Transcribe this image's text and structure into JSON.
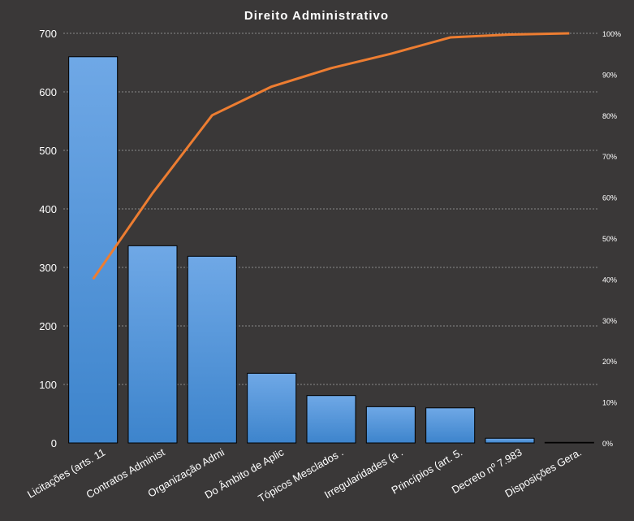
{
  "chart_data": {
    "type": "bar",
    "title": "Direito  Administrativo",
    "categories": [
      "Licitações (arts. 11",
      "Contratos Administ",
      "Organização Admi",
      "Do Âmbito de Aplic",
      "Tópicos Mesclados .",
      "Irregularidades (a .",
      "Princípios (art. 5.",
      "Decreto nº 7.983",
      "Disposições Gera."
    ],
    "series": [
      {
        "type": "bar",
        "values": [
          660,
          337,
          319,
          119,
          81,
          62,
          60,
          8,
          1
        ]
      },
      {
        "type": "line",
        "axis": "right",
        "values": [
          40,
          61,
          80,
          87,
          91.5,
          95,
          99,
          99.7,
          100
        ]
      }
    ],
    "ylim": [
      0,
      700
    ],
    "yticks": [
      "0",
      "100",
      "200",
      "300",
      "400",
      "500",
      "600",
      "700"
    ],
    "y2lim": [
      0,
      100
    ],
    "y2ticks": [
      "0%",
      "10%",
      "20%",
      "30%",
      "40%",
      "50%",
      "60%",
      "70%",
      "80%",
      "90%",
      "100%"
    ],
    "grid": true,
    "colors": {
      "background": "#3a3838",
      "bar_fill_top": "#6fa8e6",
      "bar_fill_bottom": "#3d84cc",
      "bar_stroke": "#000000",
      "line": "#ed7d31",
      "text": "#ffffff",
      "grid": "#8a8a8a"
    }
  }
}
